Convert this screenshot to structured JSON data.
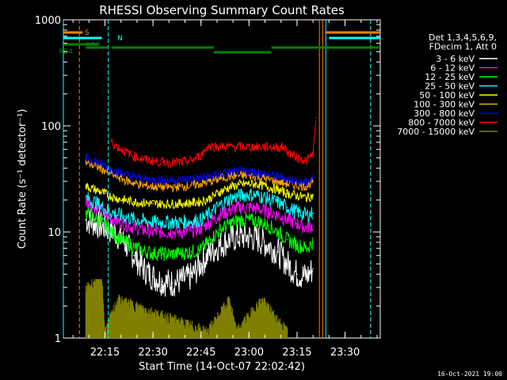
{
  "chart_data": {
    "type": "line",
    "title": "RHESSI Observing Summary Count Rates",
    "xlabel": "Start Time (14-Oct-07 22:02:42)",
    "ylabel": "Count Rate (s⁻¹ detector⁻¹)",
    "yscale": "log",
    "ylim": [
      1,
      1000
    ],
    "xlim": [
      "22:02",
      "23:41"
    ],
    "x_ticks": [
      "22:15",
      "22:30",
      "22:45",
      "23:00",
      "23:15",
      "23:30"
    ],
    "y_ticks": [
      "1",
      "10",
      "100",
      "1000"
    ],
    "legend_header": [
      "Det 1,3,4,5,6,9,",
      "FDecim 1, Att 0"
    ],
    "legend_placement": "right",
    "series": [
      {
        "name": "3 - 6 keV",
        "color": "#ffffff",
        "x": [
          "22:09",
          "22:12",
          "22:15",
          "22:18",
          "22:21",
          "22:24",
          "22:27",
          "22:30",
          "22:33",
          "22:36",
          "22:39",
          "22:42",
          "22:45",
          "22:48",
          "22:51",
          "22:54",
          "22:57",
          "23:00",
          "23:03",
          "23:06",
          "23:09",
          "23:12",
          "23:15",
          "23:18",
          "23:20"
        ],
        "values": [
          13,
          12,
          11,
          10,
          8,
          6,
          4.5,
          3.8,
          3.4,
          3.3,
          3.5,
          3.8,
          5,
          6.5,
          7.5,
          8.5,
          9,
          9,
          8.5,
          7.5,
          6.5,
          5,
          4,
          3.8,
          4.5
        ]
      },
      {
        "name": "6 - 12 keV",
        "color": "#ff00ff",
        "x": [
          "22:09",
          "22:12",
          "22:15",
          "22:18",
          "22:21",
          "22:24",
          "22:27",
          "22:30",
          "22:33",
          "22:36",
          "22:39",
          "22:42",
          "22:45",
          "22:48",
          "22:51",
          "22:54",
          "22:57",
          "23:00",
          "23:03",
          "23:06",
          "23:09",
          "23:12",
          "23:15",
          "23:18",
          "23:20"
        ],
        "values": [
          19,
          17,
          14.5,
          13,
          12,
          11,
          10.5,
          10,
          10,
          10,
          10,
          10.3,
          10.8,
          12.5,
          14.5,
          16,
          17,
          17,
          16.5,
          15.5,
          14.5,
          13,
          12,
          11,
          11.5
        ]
      },
      {
        "name": "12 - 25 keV",
        "color": "#00ff00",
        "x": [
          "22:09",
          "22:12",
          "22:15",
          "22:18",
          "22:21",
          "22:24",
          "22:27",
          "22:30",
          "22:33",
          "22:36",
          "22:39",
          "22:42",
          "22:45",
          "22:48",
          "22:51",
          "22:54",
          "22:57",
          "23:00",
          "23:03",
          "23:06",
          "23:09",
          "23:12",
          "23:15",
          "23:18",
          "23:20"
        ],
        "values": [
          15,
          13.5,
          11.5,
          9.5,
          8.2,
          7.2,
          6.6,
          6.3,
          6.2,
          6.2,
          6.3,
          6.5,
          6.8,
          8.5,
          10.5,
          12,
          13,
          13,
          12.5,
          11.5,
          10,
          8.5,
          7.5,
          7,
          8
        ]
      },
      {
        "name": "25 - 50 keV",
        "color": "#00ffff",
        "x": [
          "22:09",
          "22:12",
          "22:15",
          "22:18",
          "22:21",
          "22:24",
          "22:27",
          "22:30",
          "22:33",
          "22:36",
          "22:39",
          "22:42",
          "22:45",
          "22:48",
          "22:51",
          "22:54",
          "22:57",
          "23:00",
          "23:03",
          "23:06",
          "23:09",
          "23:12",
          "23:15",
          "23:18",
          "23:20"
        ],
        "values": [
          21,
          19,
          16.5,
          15,
          14,
          13.2,
          12.7,
          12.4,
          12.3,
          12.3,
          12.4,
          12.6,
          13,
          15,
          18,
          20.5,
          22,
          22.5,
          22,
          20.5,
          19,
          17,
          15.5,
          14.5,
          15
        ]
      },
      {
        "name": "50 - 100 keV",
        "color": "#ffff00",
        "x": [
          "22:09",
          "22:12",
          "22:15",
          "22:18",
          "22:21",
          "22:24",
          "22:27",
          "22:30",
          "22:33",
          "22:36",
          "22:39",
          "22:42",
          "22:45",
          "22:48",
          "22:51",
          "22:54",
          "22:57",
          "23:00",
          "23:03",
          "23:06",
          "23:09",
          "23:12",
          "23:15",
          "23:18",
          "23:20"
        ],
        "values": [
          27,
          25,
          23,
          21,
          20,
          19.3,
          18.8,
          18.5,
          18.4,
          18.4,
          18.5,
          18.8,
          19.3,
          21,
          24,
          26.5,
          28,
          28.5,
          28,
          26.5,
          25,
          23,
          22,
          21,
          22
        ]
      },
      {
        "name": "100 - 300 keV",
        "color": "#ffa500",
        "x": [
          "22:09",
          "22:12",
          "22:15",
          "22:18",
          "22:21",
          "22:24",
          "22:27",
          "22:30",
          "22:33",
          "22:36",
          "22:39",
          "22:42",
          "22:45",
          "22:48",
          "22:51",
          "22:54",
          "22:57",
          "23:00",
          "23:03",
          "23:06",
          "23:09",
          "23:12",
          "23:15",
          "23:18",
          "23:20"
        ],
        "values": [
          45,
          42,
          38,
          34,
          31,
          29,
          27.5,
          26.8,
          26.5,
          26.5,
          26.8,
          27.5,
          28.5,
          30,
          32,
          33.5,
          34,
          34,
          33,
          31.5,
          30,
          28.5,
          27.5,
          27,
          30
        ]
      },
      {
        "name": "300 - 800 keV",
        "color": "#0000ff",
        "x": [
          "22:09",
          "22:12",
          "22:15",
          "22:18",
          "22:21",
          "22:24",
          "22:27",
          "22:30",
          "22:33",
          "22:36",
          "22:39",
          "22:42",
          "22:45",
          "22:48",
          "22:51",
          "22:54",
          "22:57",
          "23:00",
          "23:03",
          "23:06",
          "23:09",
          "23:12",
          "23:15",
          "23:18",
          "23:20"
        ],
        "values": [
          50,
          47,
          42,
          38,
          35,
          33,
          31.5,
          31,
          30.8,
          30.8,
          31,
          31.5,
          32.5,
          33.5,
          35,
          36.5,
          37,
          37,
          36,
          34.5,
          33,
          31.5,
          30,
          29.5,
          32
        ]
      },
      {
        "name": "800 - 7000 keV",
        "color": "#ff0000",
        "x": [
          "22:17",
          "22:18",
          "22:21",
          "22:24",
          "22:27",
          "22:30",
          "22:33",
          "22:36",
          "22:39",
          "22:42",
          "22:45",
          "22:47",
          "23:11",
          "23:12",
          "23:15",
          "23:18",
          "23:20",
          "23:21"
        ],
        "values": [
          72,
          66,
          58,
          52,
          48.5,
          46.5,
          45.5,
          45,
          45.5,
          47,
          53,
          64,
          63,
          57,
          50,
          47,
          55,
          120
        ]
      },
      {
        "name": "7000 - 15000 keV",
        "color": "#808000",
        "x": [
          "22:09",
          "22:14",
          "22:15",
          "22:19",
          "22:47",
          "22:54",
          "22:56",
          "23:04",
          "23:12"
        ],
        "values": [
          2.5,
          3.5,
          1,
          2,
          1,
          2,
          1,
          2,
          1
        ]
      }
    ],
    "flags": [
      {
        "label": "S",
        "color": "#ff8000",
        "segments": [
          [
            "22:02",
            "22:08"
          ],
          [
            "23:24",
            "23:41"
          ]
        ]
      },
      {
        "label": "N",
        "color": "#00ffff",
        "segments": [
          [
            "22:02",
            "22:14"
          ],
          [
            "23:25",
            "23:41"
          ]
        ]
      },
      {
        "label": "RD0",
        "color": "#008000",
        "segments": [
          [
            "22:02",
            "22:13"
          ]
        ]
      },
      {
        "label": "RB4",
        "color": "#008000",
        "segments": [
          [
            "22:09",
            "22:16"
          ],
          [
            "22:17",
            "22:49"
          ],
          [
            "22:49",
            "23:07"
          ],
          [
            "23:07",
            "23:41"
          ]
        ]
      }
    ],
    "vertical_markers": [
      {
        "time": "22:02",
        "color": "#00ffff",
        "style": "solid"
      },
      {
        "time": "22:07",
        "color": "#ff8000",
        "style": "dashed"
      },
      {
        "time": "22:16",
        "color": "#00ffff",
        "style": "dashed"
      },
      {
        "time": "23:22",
        "color": "#ff8000",
        "style": "solid"
      },
      {
        "time": "23:23",
        "color": "#ff8000",
        "style": "solid"
      },
      {
        "time": "23:24",
        "color": "#00ffff",
        "style": "solid"
      },
      {
        "time": "23:38",
        "color": "#ff8000",
        "style": "dashed"
      },
      {
        "time": "23:38",
        "color": "#00ffff",
        "style": "dashed"
      }
    ],
    "grid": false
  },
  "footer": {
    "date_stamp": "16-Oct-2021 19:00"
  }
}
